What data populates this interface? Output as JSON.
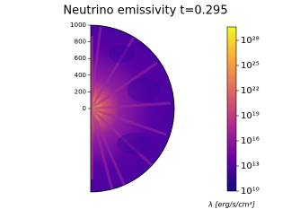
{
  "chart_data": {
    "type": "heatmap",
    "title": "Neutrino emissivity t=0.295",
    "ylim": [
      -1000,
      1000
    ],
    "yticks": [
      0,
      200,
      400,
      600,
      800,
      1000
    ],
    "colorbar": {
      "label": "λ [erg/s/cm³]",
      "log_scale": true,
      "clim": [
        10000000000.0,
        4e+29
      ],
      "colormap": [
        "#0d0887",
        "#6a00a8",
        "#b12a90",
        "#e16462",
        "#fca636",
        "#f0f921"
      ],
      "ticks": [
        {
          "value": 10000000000.0,
          "label": "10¹⁰"
        },
        {
          "value": 10000000000000.0,
          "label": "10¹³"
        },
        {
          "value": 1e+16,
          "label": "10¹⁶"
        },
        {
          "value": 1e+19,
          "label": "10¹⁹"
        },
        {
          "value": 1e+22,
          "label": "10²²"
        },
        {
          "value": 1e+25,
          "label": "10²⁵"
        },
        {
          "value": 1e+28,
          "label": "10²⁸"
        }
      ]
    }
  }
}
